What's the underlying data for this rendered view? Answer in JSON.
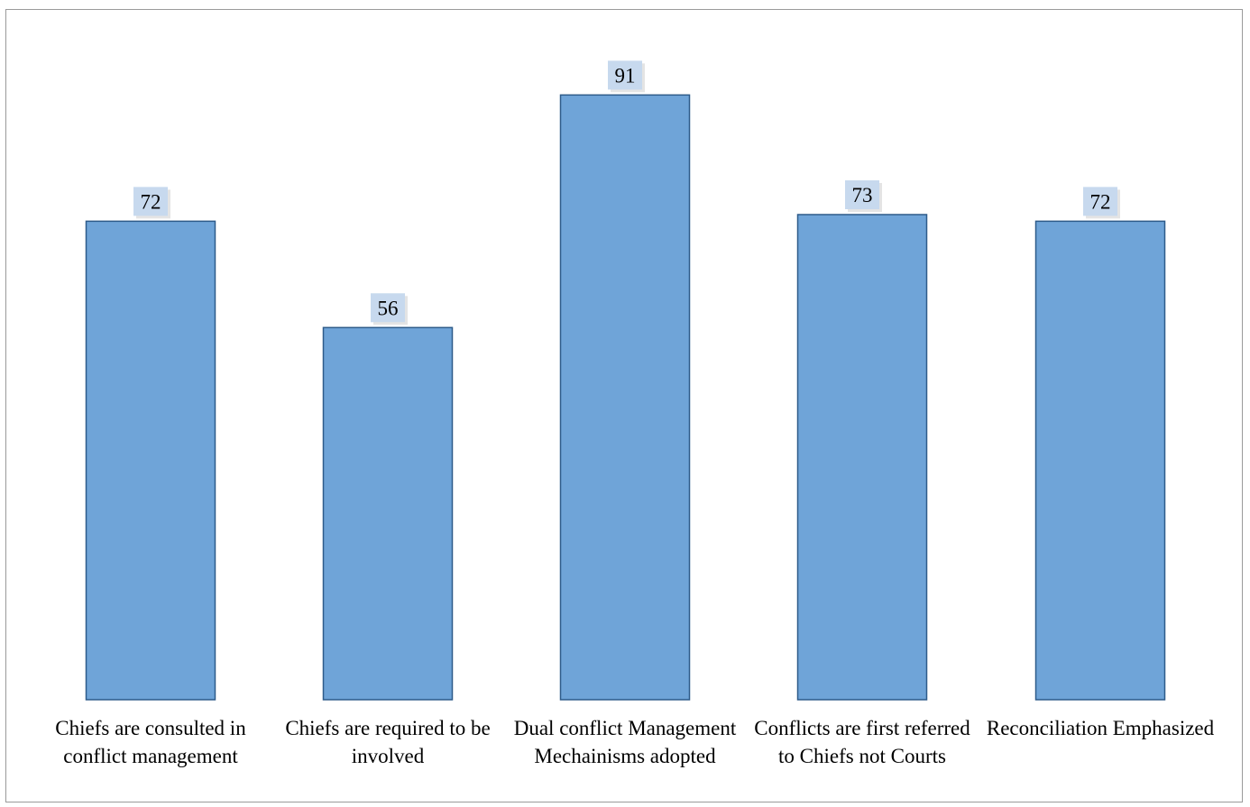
{
  "chart_data": {
    "type": "bar",
    "title": "",
    "xlabel": "",
    "ylabel": "",
    "categories": [
      "Chiefs are consulted in conflict management",
      "Chiefs are required to be involved",
      "Dual conflict Management Mechainisms adopted",
      "Conflicts are first referred to Chiefs not Courts",
      "Reconciliation Emphasized"
    ],
    "values": [
      72,
      56,
      91,
      73,
      72
    ],
    "ylim": [
      0,
      100
    ],
    "grid": false,
    "data_labels": true,
    "bar_color": "#6fa4d8",
    "bar_edge_color": "#2e5b8a",
    "label_box_color": "#c7d9ee"
  }
}
